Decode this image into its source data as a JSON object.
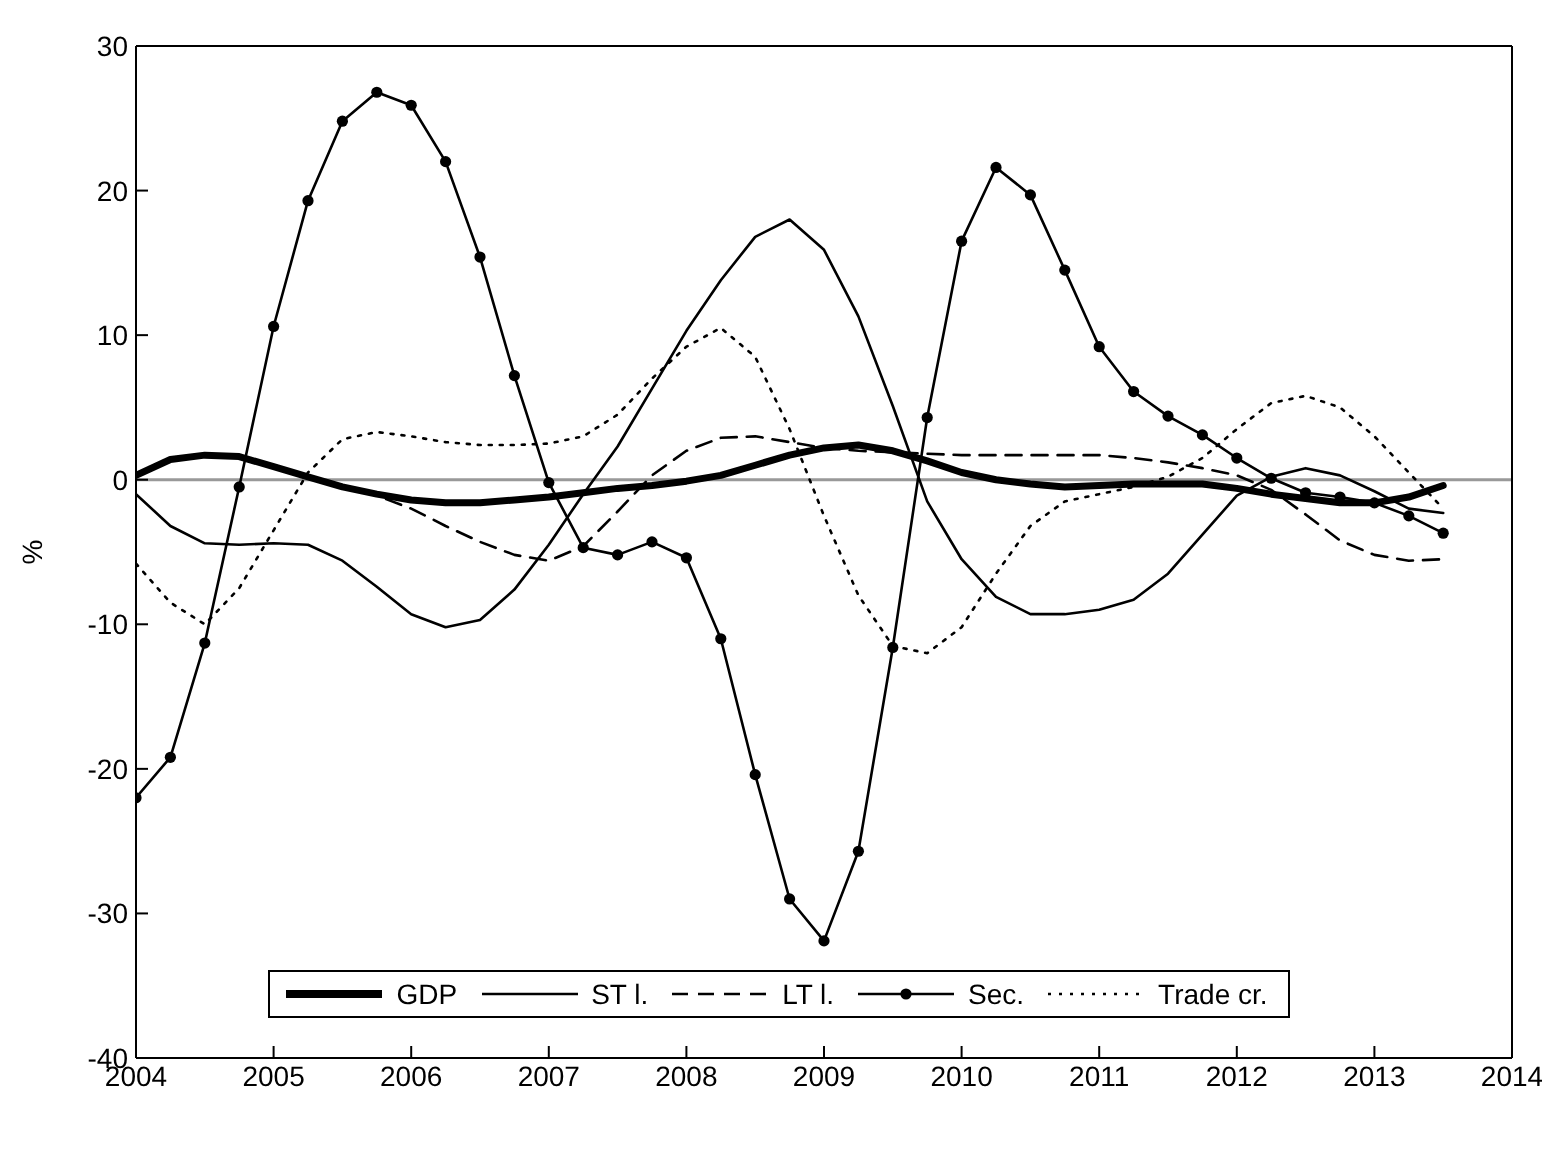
{
  "chart_data": {
    "type": "line",
    "ylabel": "%",
    "xlim": [
      2004,
      2014
    ],
    "xticks": [
      2004,
      2005,
      2006,
      2007,
      2008,
      2009,
      2010,
      2011,
      2012,
      2013,
      2014
    ],
    "ylim": [
      -40,
      30
    ],
    "yticks": [
      -40,
      -30,
      -20,
      -10,
      0,
      10,
      20,
      30
    ],
    "grid": false,
    "legend": "bottom",
    "x": [
      2004,
      2004.25,
      2004.5,
      2004.75,
      2005,
      2005.25,
      2005.5,
      2005.75,
      2006,
      2006.25,
      2006.5,
      2006.75,
      2007,
      2007.25,
      2007.5,
      2007.75,
      2008,
      2008.25,
      2008.5,
      2008.75,
      2009,
      2009.25,
      2009.5,
      2009.75,
      2010,
      2010.25,
      2010.5,
      2010.75,
      2011,
      2011.25,
      2011.5,
      2011.75,
      2012,
      2012.25,
      2012.5,
      2012.75,
      2013,
      2013.25,
      2013.5
    ],
    "ref_lines": [
      {
        "axis": "y",
        "value": 0,
        "color": "#999999"
      }
    ],
    "series": [
      {
        "name": "GDP",
        "color": "#000000",
        "line_style": "solid",
        "marker": "none",
        "values": [
          0.3,
          1.4,
          1.7,
          1.6,
          0.9,
          0.2,
          -0.5,
          -1.0,
          -1.4,
          -1.6,
          -1.6,
          -1.4,
          -1.2,
          -0.9,
          -0.6,
          -0.4,
          -0.1,
          0.3,
          1.0,
          1.7,
          2.2,
          2.4,
          2.0,
          1.3,
          0.5,
          0.0,
          -0.3,
          -0.5,
          -0.4,
          -0.3,
          -0.3,
          -0.3,
          -0.6,
          -1.0,
          -1.3,
          -1.6,
          -1.6,
          -1.2,
          -0.4
        ]
      },
      {
        "name": "ST l.",
        "color": "#000000",
        "line_style": "solid",
        "marker": "none",
        "values": [
          -1,
          -3.2,
          -4.4,
          -4.5,
          -4.4,
          -4.5,
          -5.6,
          -7.4,
          -9.3,
          -10.2,
          -9.7,
          -7.6,
          -4.5,
          -1,
          2.3,
          6.3,
          10.3,
          13.8,
          16.8,
          18.0,
          15.9,
          11.3,
          5.1,
          -1.5,
          -5.5,
          -8.1,
          -9.3,
          -9.3,
          -9.0,
          -8.3,
          -6.5,
          -3.8,
          -1.1,
          0.2,
          0.8,
          0.3,
          -0.8,
          -2.0,
          -2.3
        ]
      },
      {
        "name": "LT l.",
        "color": "#000000",
        "line_style": "dashed",
        "marker": "none",
        "values": [
          0.3,
          1.4,
          1.7,
          1.6,
          0.9,
          0.2,
          -0.5,
          -1.1,
          -2.0,
          -3.2,
          -4.3,
          -5.2,
          -5.6,
          -4.6,
          -2.2,
          0.3,
          2.0,
          2.9,
          3.0,
          2.6,
          2.2,
          2.0,
          1.9,
          1.8,
          1.7,
          1.7,
          1.7,
          1.7,
          1.7,
          1.5,
          1.2,
          0.8,
          0.3,
          -0.7,
          -2.4,
          -4.2,
          -5.2,
          -5.6,
          -5.5
        ]
      },
      {
        "name": "Sec.",
        "color": "#000000",
        "line_style": "solid",
        "marker": "circle",
        "values": [
          -22,
          -19.2,
          -11.3,
          -0.5,
          10.6,
          19.3,
          24.8,
          26.8,
          25.9,
          22,
          15.4,
          7.2,
          -0.2,
          -4.7,
          -5.2,
          -4.3,
          -5.4,
          -11,
          -20.4,
          -29,
          -31.9,
          -25.7,
          -11.6,
          4.3,
          16.5,
          21.6,
          19.7,
          14.5,
          9.2,
          6.1,
          4.4,
          3.1,
          1.5,
          0.1,
          -0.9,
          -1.2,
          -1.6,
          -2.5,
          -3.7
        ]
      },
      {
        "name": "Trade cr.",
        "color": "#000000",
        "line_style": "dotted",
        "marker": "none",
        "values": [
          -5.8,
          -8.5,
          -10,
          -7.5,
          -3.5,
          0.5,
          2.8,
          3.3,
          3.0,
          2.6,
          2.4,
          2.4,
          2.5,
          3.0,
          4.5,
          7.0,
          9.2,
          10.5,
          8.5,
          3.5,
          -2.5,
          -8,
          -11.5,
          -12.0,
          -10.2,
          -6.5,
          -3.2,
          -1.5,
          -1.0,
          -0.5,
          0.2,
          1.5,
          3.5,
          5.3,
          5.8,
          5.0,
          3.0,
          0.5,
          -2.0
        ]
      }
    ]
  }
}
